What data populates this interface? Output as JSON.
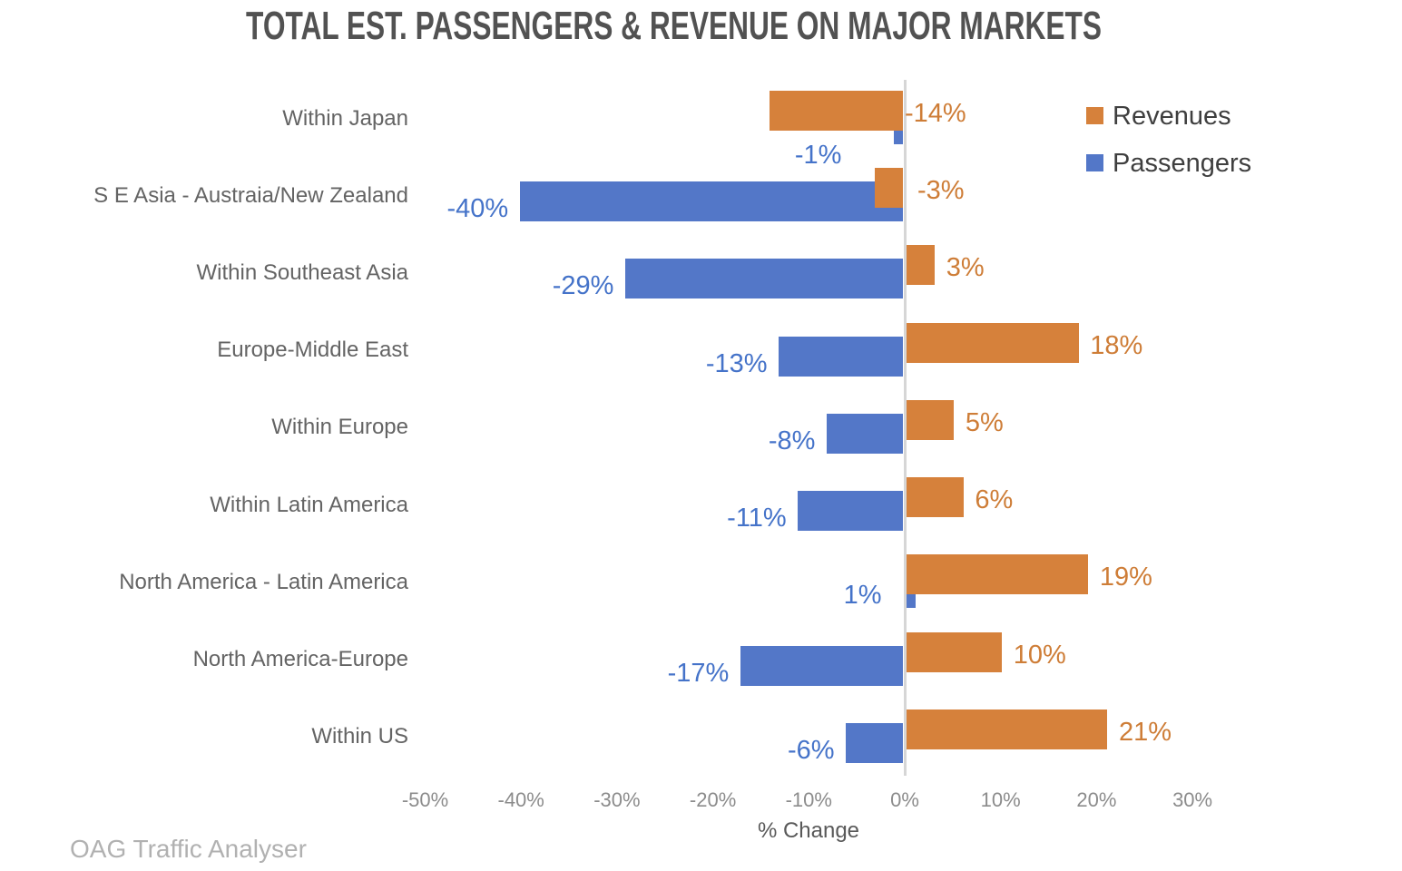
{
  "title": "TOTAL EST. PASSENGERS & REVENUE ON MAJOR MARKETS",
  "source_note": "OAG Traffic Analyser",
  "legend": {
    "position": "top-right",
    "items": [
      {
        "label": "Revenues",
        "color": "#D6813B"
      },
      {
        "label": "Passengers",
        "color": "#5377C8"
      }
    ]
  },
  "chart_data": {
    "type": "bar",
    "orientation": "horizontal",
    "title": "TOTAL EST. PASSENGERS & REVENUE ON MAJOR MARKETS",
    "xlabel": "% Change",
    "ylabel": "",
    "xlim": [
      -50,
      30
    ],
    "grid": false,
    "zero_axis_line": true,
    "legend_position": "top-right",
    "categories": [
      "Within Japan",
      "S E Asia - Austraia/New Zealand",
      "Within Southeast Asia",
      "Europe-Middle East",
      "Within Europe",
      "Within Latin America",
      "North America - Latin America",
      "North America-Europe",
      "Within US"
    ],
    "series": [
      {
        "name": "Revenues",
        "color": "#D6813B",
        "label_color": "#CE7D37",
        "values": [
          -14,
          -3,
          3,
          18,
          5,
          6,
          19,
          10,
          21
        ],
        "labels": [
          "-14%",
          "-3%",
          "3%",
          "18%",
          "5%",
          "6%",
          "19%",
          "10%",
          "21%"
        ]
      },
      {
        "name": "Passengers",
        "color": "#5377C8",
        "label_color": "#4573C9",
        "values": [
          -1,
          -40,
          -29,
          -13,
          -8,
          -11,
          1,
          -17,
          -6
        ],
        "labels": [
          "-1%",
          "-40%",
          "-29%",
          "-13%",
          "-8%",
          "-11%",
          "1%",
          "-17%",
          "-6%"
        ]
      }
    ],
    "x_ticks": [
      {
        "value": -50,
        "label": "-50%"
      },
      {
        "value": -40,
        "label": "-40%"
      },
      {
        "value": -30,
        "label": "-30%"
      },
      {
        "value": -20,
        "label": "-20%"
      },
      {
        "value": -10,
        "label": "-10%"
      },
      {
        "value": 0,
        "label": "0%"
      },
      {
        "value": 10,
        "label": "10%"
      },
      {
        "value": 20,
        "label": "20%"
      },
      {
        "value": 30,
        "label": "30%"
      }
    ],
    "label_overrides": {
      "Revenues": {
        "0": {
          "dx": -14,
          "dy": 0
        }
      },
      "Passengers": {
        "0": {
          "dx": -45,
          "dy": 26
        },
        "6": {
          "dx": -92,
          "dy": 0
        }
      }
    }
  }
}
